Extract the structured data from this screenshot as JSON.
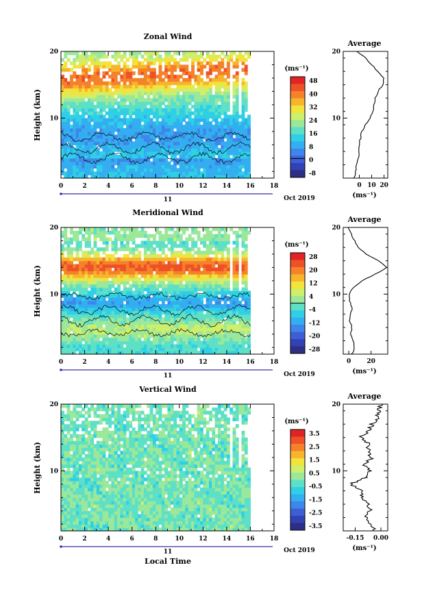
{
  "figure": {
    "date_label": "Oct 2019",
    "day_label": "11",
    "x_axis_label": "Local Time",
    "y_axis_label": "Height (km)",
    "colorbar_unit": "(ms⁻¹)",
    "average_title": "Average",
    "average_unit": "(ms⁻¹)"
  },
  "colors": {
    "scale": [
      "#2d2f85",
      "#3242b3",
      "#3d5fd6",
      "#3f86ea",
      "#33aef0",
      "#2fd0e6",
      "#5ee0c6",
      "#9be89a",
      "#cfee6a",
      "#f2e33d",
      "#f7b52c",
      "#f5822a",
      "#ee5128",
      "#e02424"
    ],
    "contour": "#000000",
    "axis": "#000000"
  },
  "chart_data": [
    {
      "id": "zonal",
      "type": "heatmap",
      "title": "Zonal Wind",
      "xlabel": "",
      "ylabel": "Height (km)",
      "xlim": [
        0,
        18
      ],
      "ylim": [
        1,
        20
      ],
      "x_ticks": [
        0,
        2,
        4,
        6,
        8,
        10,
        12,
        14,
        16,
        18
      ],
      "y_ticks": [
        10,
        20
      ],
      "data_end_time": 16,
      "profile_heights_km": [
        3,
        5,
        7,
        9,
        11,
        13,
        15,
        17,
        19
      ],
      "colorbar_ticks": [
        "48",
        "40",
        "32",
        "24",
        "16",
        "8",
        "0",
        "-8"
      ],
      "colorbar_range": [
        -12,
        52
      ],
      "zero_contour_level": 0,
      "average_profile": {
        "xlabel": "(ms⁻¹)",
        "xlim": [
          -13,
          23
        ],
        "x_ticks": [
          "0",
          "10",
          "20"
        ],
        "heights": [
          1,
          2,
          3,
          4,
          5,
          6,
          7,
          8,
          9,
          10,
          11,
          12,
          13,
          14,
          15,
          16,
          17,
          18,
          19,
          20
        ],
        "values": [
          -4,
          -3,
          -2,
          -1,
          0,
          0,
          1,
          2,
          5,
          9,
          11,
          12,
          13,
          15,
          19,
          20,
          15,
          10,
          5,
          -2
        ]
      }
    },
    {
      "id": "meridional",
      "type": "heatmap",
      "title": "Meridional Wind",
      "xlabel": "",
      "ylabel": "Height (km)",
      "xlim": [
        0,
        18
      ],
      "ylim": [
        1,
        20
      ],
      "x_ticks": [
        0,
        2,
        4,
        6,
        8,
        10,
        12,
        14,
        16,
        18
      ],
      "y_ticks": [
        10,
        20
      ],
      "data_end_time": 16,
      "profile_heights_km": [
        3,
        5,
        7,
        9,
        11,
        13,
        15,
        17,
        19
      ],
      "colorbar_ticks": [
        "28",
        "20",
        "12",
        "4",
        "-4",
        "-12",
        "-20",
        "-28"
      ],
      "colorbar_range": [
        -32,
        32
      ],
      "zero_contour_level": 0,
      "average_profile": {
        "xlabel": "(ms⁻¹)",
        "xlim": [
          -5,
          35
        ],
        "x_ticks": [
          "0",
          "20"
        ],
        "heights": [
          1,
          2,
          3,
          4,
          5,
          6,
          7,
          8,
          9,
          10,
          11,
          12,
          13,
          14,
          15,
          16,
          17,
          18,
          19,
          20
        ],
        "values": [
          3,
          5,
          4,
          2,
          3,
          1,
          2,
          3,
          1,
          0,
          4,
          12,
          24,
          34,
          27,
          15,
          9,
          5,
          2,
          0
        ]
      }
    },
    {
      "id": "vertical",
      "type": "heatmap",
      "title": "Vertical Wind",
      "xlabel": "Local Time",
      "ylabel": "Height (km)",
      "xlim": [
        0,
        18
      ],
      "ylim": [
        1,
        20
      ],
      "x_ticks": [
        0,
        2,
        4,
        6,
        8,
        10,
        12,
        14,
        16,
        18
      ],
      "y_ticks": [
        10,
        20
      ],
      "data_end_time": 16,
      "profile_heights_km": [
        3,
        5,
        7,
        9,
        11,
        13,
        15,
        17,
        19
      ],
      "colorbar_ticks": [
        "3.5",
        "2.5",
        "1.5",
        "0.5",
        "-0.5",
        "-1.5",
        "-2.5",
        "-3.5"
      ],
      "colorbar_range": [
        -4,
        4
      ],
      "zero_contour_level": null,
      "average_profile": {
        "xlabel": "(ms⁻¹)",
        "xlim": [
          -0.22,
          0.04
        ],
        "x_ticks": [
          "-0.15",
          "0.00"
        ],
        "heights": [
          1,
          2,
          3,
          4,
          5,
          6,
          7,
          8,
          9,
          10,
          11,
          12,
          13,
          14,
          15,
          16,
          17,
          18,
          19,
          20
        ],
        "values": [
          -0.03,
          -0.06,
          -0.09,
          -0.06,
          -0.08,
          -0.1,
          -0.12,
          -0.18,
          -0.09,
          -0.07,
          -0.1,
          -0.05,
          -0.08,
          -0.06,
          -0.12,
          -0.07,
          -0.05,
          -0.02,
          -0.01,
          0.0
        ]
      }
    }
  ]
}
